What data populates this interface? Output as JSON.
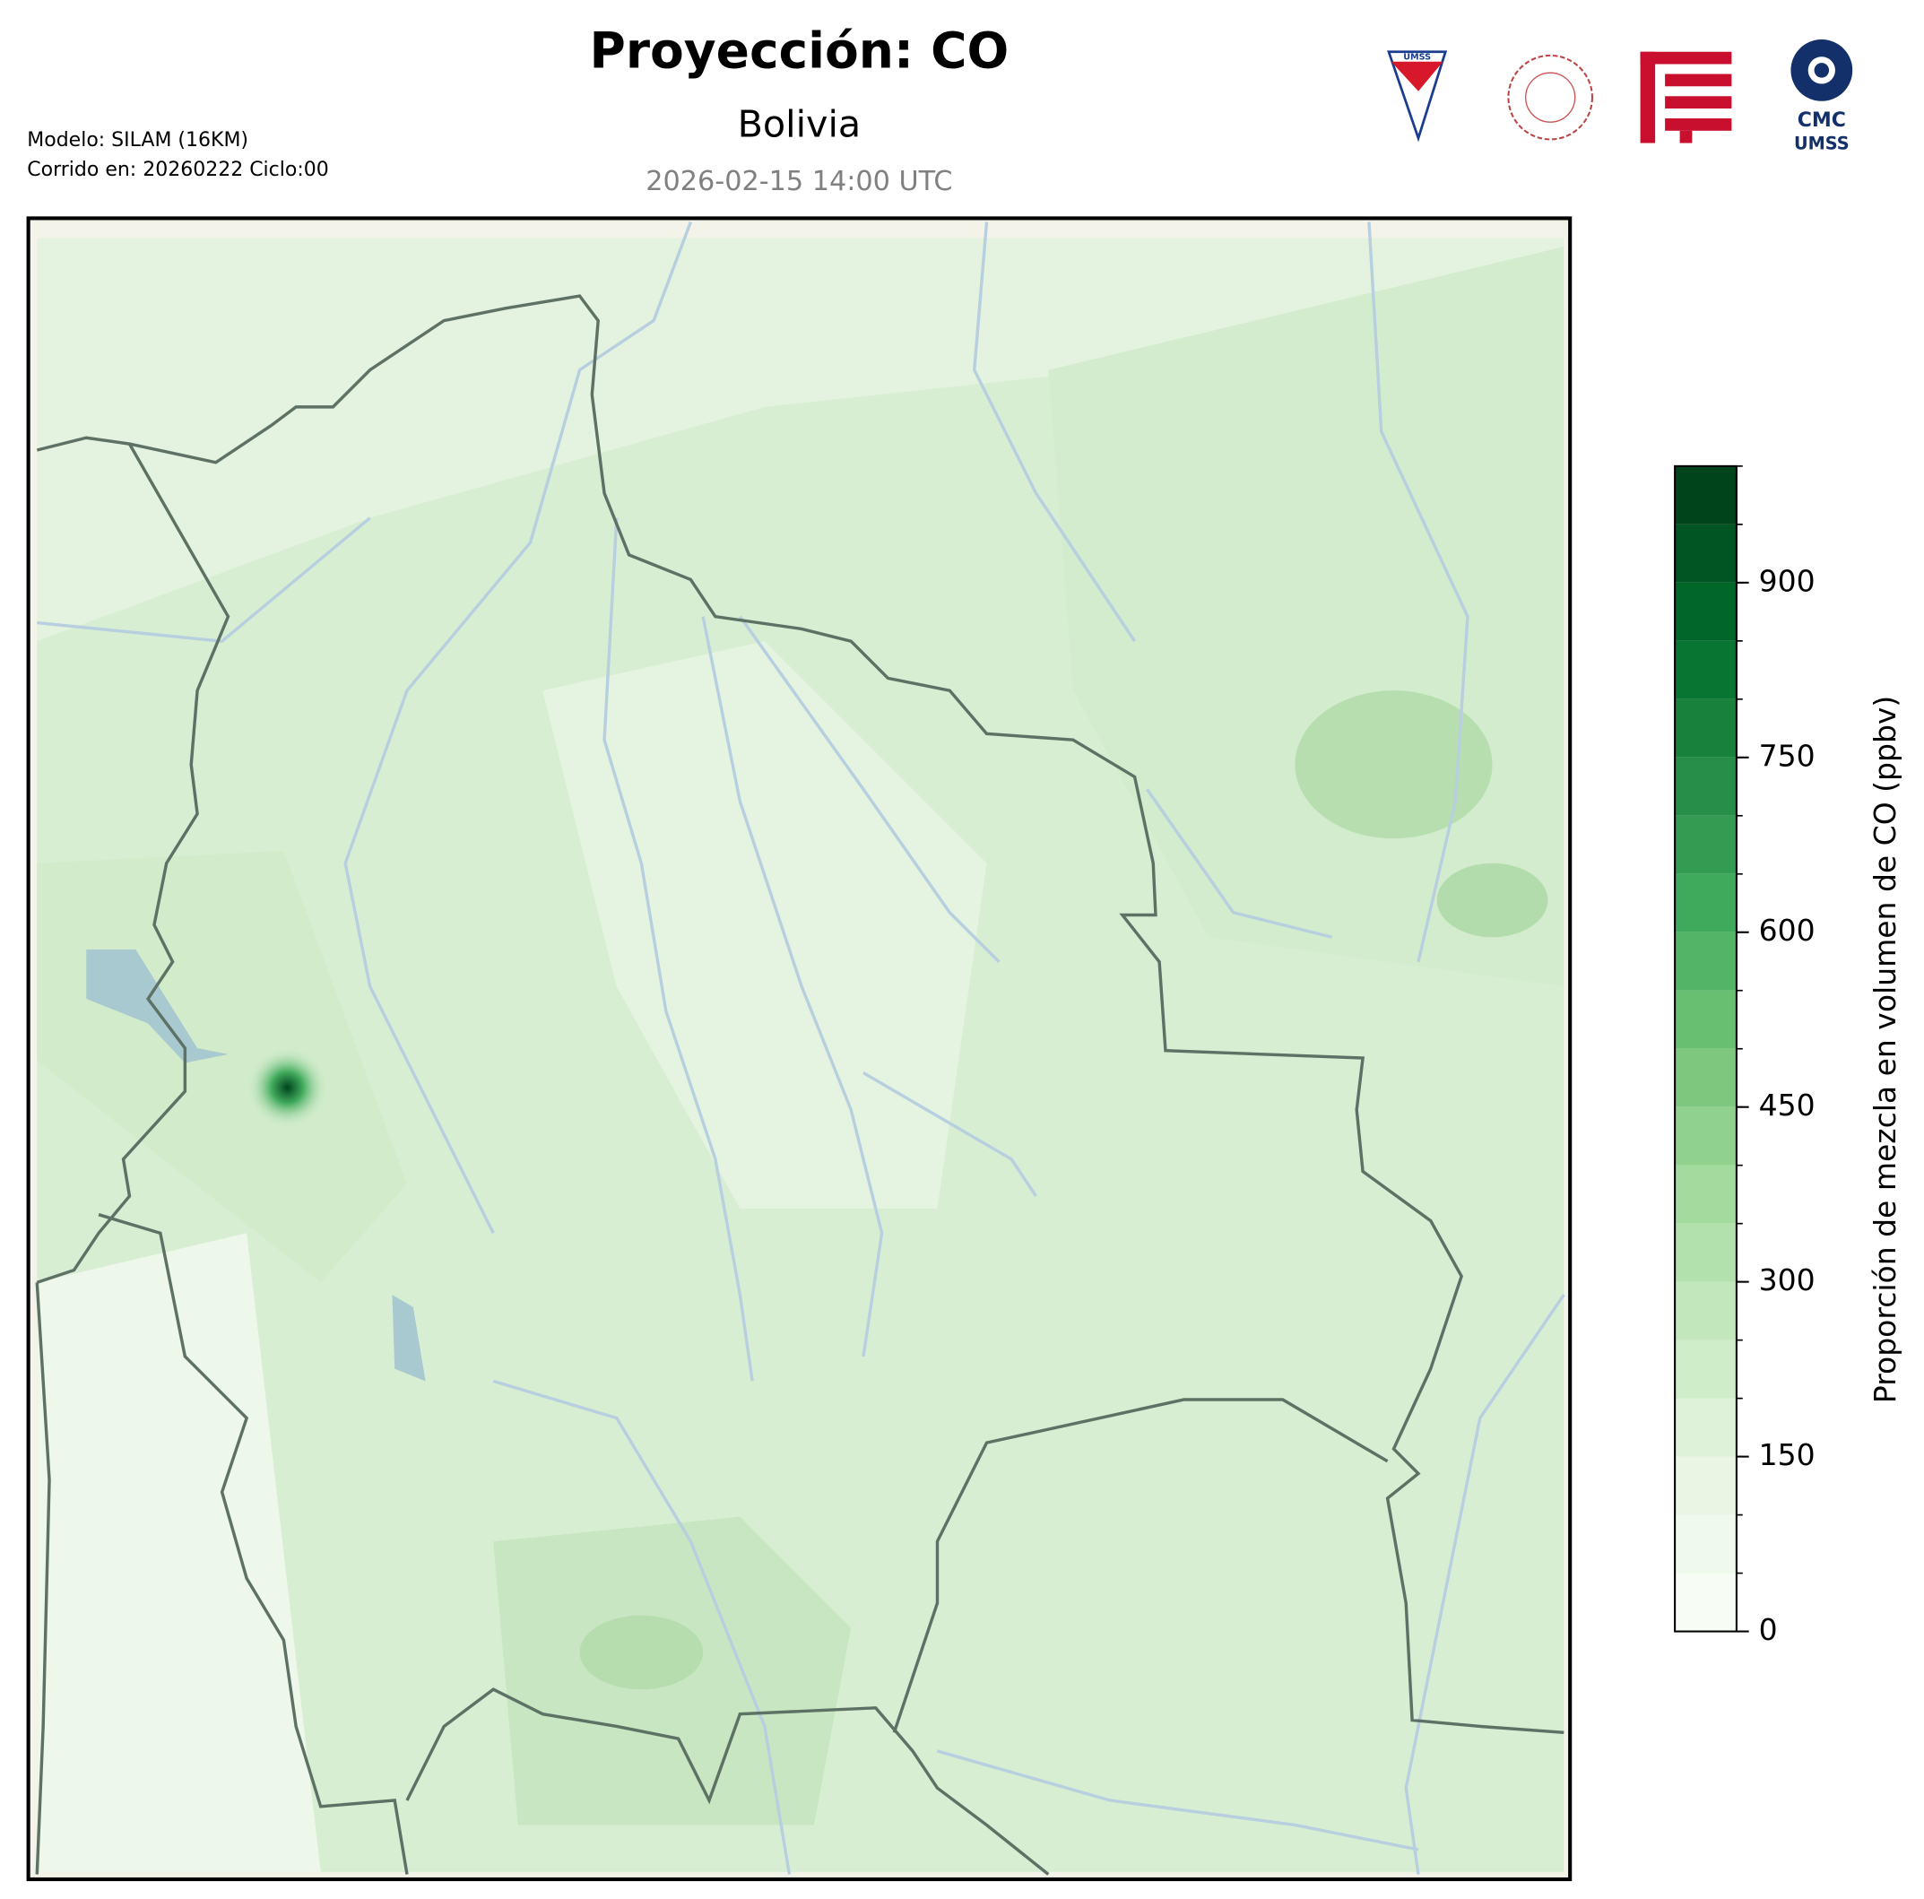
{
  "chart_data": {
    "type": "map",
    "title": "Proyección: CO",
    "subtitle": "Bolivia",
    "date": "2026-02-15 14:00 UTC",
    "annotations": [
      "Modelo: SILAM (16KM)",
      "Corrido en: 20260222 Ciclo:00"
    ],
    "logos": [
      "UMSS",
      "CMC",
      "UMSS"
    ],
    "colorbar": {
      "label": "Proporción de mezcla en volumen de CO (ppbv)",
      "lim": [
        0,
        1000
      ],
      "ticks": [
        0,
        150,
        300,
        450,
        600,
        750,
        900
      ],
      "levels": [
        0,
        50,
        100,
        150,
        200,
        250,
        300,
        350,
        400,
        450,
        500,
        550,
        600,
        650,
        700,
        750,
        800,
        850,
        900,
        950,
        1000
      ],
      "colormap": [
        "#f7fcf5",
        "#e5f5e0",
        "#c7e9c0",
        "#a1d99b",
        "#74c476",
        "#41ab5d",
        "#238b45",
        "#006d2c",
        "#00441b"
      ]
    }
  }
}
